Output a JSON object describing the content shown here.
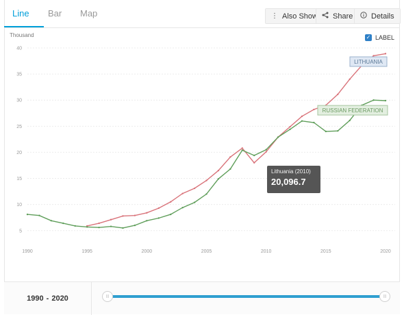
{
  "tabs": [
    {
      "label": "Line",
      "active": true
    },
    {
      "label": "Bar",
      "active": false
    },
    {
      "label": "Map",
      "active": false
    }
  ],
  "toolbar": {
    "also_show_label": "Also Show",
    "share_label": "Share",
    "details_label": "Details",
    "also_show_icon": "vertical-dots-icon",
    "share_icon": "share-icon",
    "details_icon": "info-icon"
  },
  "label_toggle": {
    "text": "LABEL",
    "checked": true
  },
  "range": {
    "start": "1990",
    "end": "2020",
    "separator": "-"
  },
  "tooltip": {
    "title": "Lithuania (2010)",
    "value": "20,096.7"
  },
  "colors": {
    "accent": "#009fda",
    "lithuania": "#d9737a",
    "russia": "#5f9e5a"
  },
  "chart_data": {
    "type": "line",
    "unit_label": "Thousand",
    "x_ticks": [
      1990,
      1995,
      2000,
      2005,
      2010,
      2015,
      2020
    ],
    "y_ticks": [
      5,
      10,
      15,
      20,
      25,
      30,
      35,
      40
    ],
    "xlim": [
      1990,
      2020
    ],
    "ylim": [
      3,
      40
    ],
    "grid": true,
    "series": [
      {
        "name": "LITHUANIA",
        "color": "#d9737a",
        "x": [
          1995,
          1996,
          1997,
          1998,
          1999,
          2000,
          2001,
          2002,
          2003,
          2004,
          2005,
          2006,
          2007,
          2008,
          2009,
          2010,
          2011,
          2012,
          2013,
          2014,
          2015,
          2016,
          2017,
          2018,
          2019,
          2020
        ],
        "values": [
          5.9,
          6.4,
          7.1,
          7.8,
          7.9,
          8.4,
          9.3,
          10.5,
          12.1,
          13.1,
          14.6,
          16.5,
          19.1,
          20.8,
          18.0,
          20.1,
          22.9,
          24.9,
          26.9,
          28.2,
          29.0,
          31.1,
          34.0,
          36.6,
          38.5,
          38.9
        ]
      },
      {
        "name": "RUSSIAN FEDERATION",
        "color": "#5f9e5a",
        "x": [
          1990,
          1991,
          1992,
          1993,
          1994,
          1995,
          1996,
          1997,
          1998,
          1999,
          2000,
          2001,
          2002,
          2003,
          2004,
          2005,
          2006,
          2007,
          2008,
          2009,
          2010,
          2011,
          2012,
          2013,
          2014,
          2015,
          2016,
          2017,
          2018,
          2019,
          2020
        ],
        "values": [
          8.1,
          7.9,
          6.9,
          6.4,
          5.9,
          5.7,
          5.6,
          5.8,
          5.5,
          6.0,
          6.9,
          7.4,
          8.1,
          9.4,
          10.4,
          12.0,
          14.9,
          16.8,
          20.4,
          19.4,
          20.5,
          22.9,
          24.4,
          26.0,
          25.7,
          24.0,
          24.1,
          26.1,
          29.0,
          30.0,
          29.9
        ]
      }
    ]
  }
}
